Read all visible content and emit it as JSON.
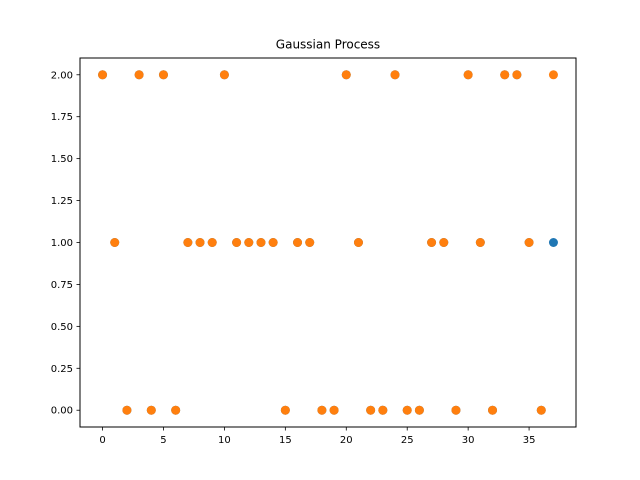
{
  "chart_data": {
    "type": "scatter",
    "title": "Gaussian Process",
    "xlabel": "",
    "ylabel": "",
    "xlim": [
      -1.85,
      38.85
    ],
    "ylim": [
      -0.1,
      2.1
    ],
    "xticks": [
      {
        "value": 0,
        "label": "0"
      },
      {
        "value": 5,
        "label": "5"
      },
      {
        "value": 10,
        "label": "10"
      },
      {
        "value": 15,
        "label": "15"
      },
      {
        "value": 20,
        "label": "20"
      },
      {
        "value": 25,
        "label": "25"
      },
      {
        "value": 30,
        "label": "30"
      },
      {
        "value": 35,
        "label": "35"
      }
    ],
    "yticks": [
      {
        "value": 0.0,
        "label": "0.00"
      },
      {
        "value": 0.25,
        "label": "0.25"
      },
      {
        "value": 0.5,
        "label": "0.50"
      },
      {
        "value": 0.75,
        "label": "0.75"
      },
      {
        "value": 1.0,
        "label": "1.00"
      },
      {
        "value": 1.25,
        "label": "1.25"
      },
      {
        "value": 1.5,
        "label": "1.50"
      },
      {
        "value": 1.75,
        "label": "1.75"
      },
      {
        "value": 2.0,
        "label": "2.00"
      }
    ],
    "grid": false,
    "series": [
      {
        "color": "#1f77b4",
        "x": [
          0,
          1,
          2,
          3,
          4,
          5,
          6,
          7,
          8,
          9,
          10,
          11,
          12,
          13,
          14,
          15,
          16,
          17,
          18,
          19,
          20,
          21,
          22,
          23,
          24,
          25,
          26,
          27,
          28,
          29,
          30,
          31,
          32,
          33,
          34,
          35,
          36,
          37
        ],
        "y": [
          2,
          1,
          0,
          2,
          0,
          2,
          0,
          1,
          1,
          1,
          2,
          1,
          1,
          1,
          1,
          0,
          1,
          1,
          0,
          0,
          2,
          1,
          0,
          0,
          2,
          0,
          0,
          1,
          1,
          0,
          2,
          1,
          0,
          2,
          2,
          1,
          0,
          1
        ]
      },
      {
        "color": "#ff7f0e",
        "x": [
          0,
          1,
          2,
          3,
          4,
          5,
          6,
          7,
          8,
          9,
          10,
          11,
          12,
          13,
          14,
          15,
          16,
          17,
          18,
          19,
          20,
          21,
          22,
          23,
          24,
          25,
          26,
          27,
          28,
          29,
          30,
          31,
          32,
          33,
          34,
          35,
          36,
          37
        ],
        "y": [
          2,
          1,
          0,
          2,
          0,
          2,
          0,
          1,
          1,
          1,
          2,
          1,
          1,
          1,
          1,
          0,
          1,
          1,
          0,
          0,
          2,
          1,
          0,
          0,
          2,
          0,
          0,
          1,
          1,
          0,
          2,
          1,
          0,
          2,
          2,
          1,
          0,
          2
        ]
      }
    ]
  }
}
